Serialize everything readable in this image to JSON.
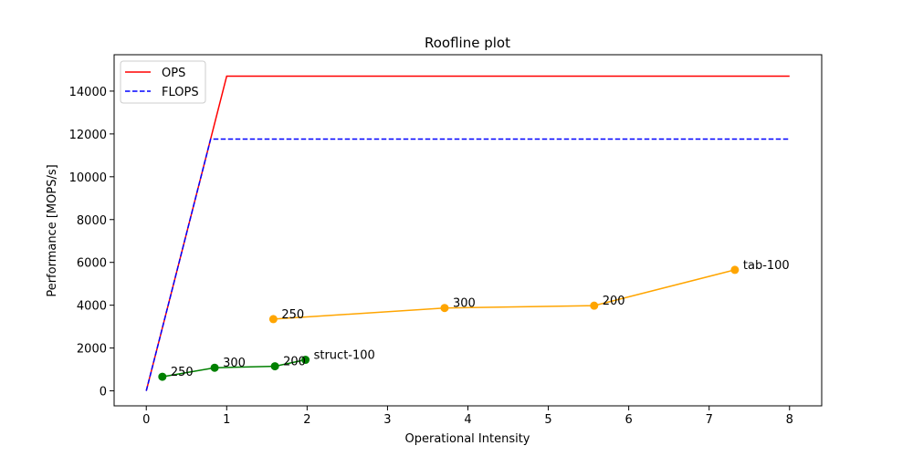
{
  "chart_data": {
    "type": "line",
    "title": "Roofline plot",
    "xlabel": "Operational Intensity",
    "ylabel": "Performance [MOPS/s]",
    "xlim": [
      -0.4,
      8.4
    ],
    "ylim": [
      -700,
      15700
    ],
    "xticks": [
      0,
      1,
      2,
      3,
      4,
      5,
      6,
      7,
      8
    ],
    "yticks": [
      0,
      2000,
      4000,
      6000,
      8000,
      10000,
      12000,
      14000
    ],
    "grid": false,
    "legend_position": "top-left",
    "legend": [
      {
        "label": "OPS",
        "color": "#ff0000",
        "style": "solid"
      },
      {
        "label": "FLOPS",
        "color": "#0000ff",
        "style": "dashed"
      }
    ],
    "series": [
      {
        "name": "OPS",
        "color": "#ff0000",
        "style": "solid",
        "markers": false,
        "points": [
          [
            0,
            0
          ],
          [
            1,
            14700
          ],
          [
            8,
            14700
          ]
        ]
      },
      {
        "name": "FLOPS",
        "color": "#0000ff",
        "style": "dashed",
        "markers": false,
        "points": [
          [
            0,
            0
          ],
          [
            0.8,
            11760
          ],
          [
            8,
            11760
          ]
        ]
      },
      {
        "name": "tab",
        "color": "#ffa500",
        "style": "solid",
        "markers": true,
        "points": [
          [
            7.32,
            5650
          ],
          [
            5.57,
            3980
          ],
          [
            3.71,
            3870
          ],
          [
            1.58,
            3350
          ]
        ],
        "labels": [
          "tab-100",
          "200",
          "300",
          "250"
        ]
      },
      {
        "name": "struct",
        "color": "#008000",
        "style": "solid",
        "markers": true,
        "points": [
          [
            1.98,
            1450
          ],
          [
            1.6,
            1150
          ],
          [
            0.85,
            1080
          ],
          [
            0.2,
            660
          ]
        ],
        "labels": [
          "struct-100",
          "200",
          "300",
          "250"
        ]
      }
    ]
  }
}
